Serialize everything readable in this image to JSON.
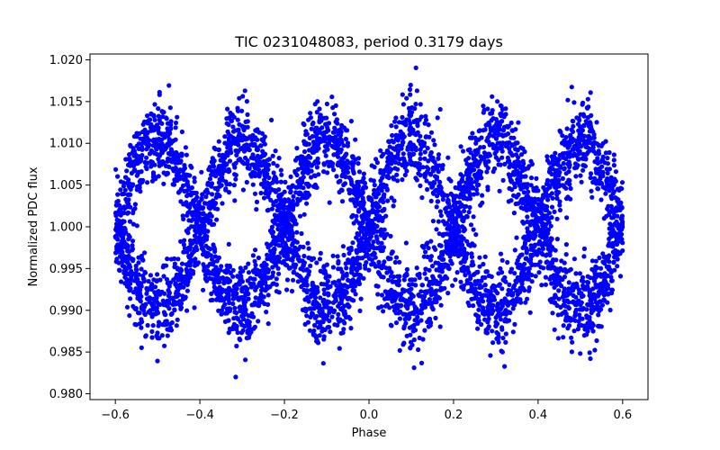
{
  "chart_data": {
    "type": "scatter",
    "title": "TIC 0231048083, period 0.3179 days",
    "xlabel": "Phase",
    "ylabel": "Normalized PDC flux",
    "xlim": [
      -0.66,
      0.66
    ],
    "ylim": [
      0.9793,
      1.0207
    ],
    "xticks": [
      -0.6,
      -0.4,
      -0.2,
      0.0,
      0.2,
      0.4,
      0.6
    ],
    "xtick_labels": [
      "−0.6",
      "−0.4",
      "−0.2",
      "0.0",
      "0.2",
      "0.4",
      "0.6"
    ],
    "yticks": [
      0.98,
      0.985,
      0.99,
      0.995,
      1.0,
      1.005,
      1.01,
      1.015,
      1.02
    ],
    "ytick_labels": [
      "0.980",
      "0.985",
      "0.990",
      "0.995",
      "1.000",
      "1.005",
      "1.010",
      "1.015",
      "1.020"
    ],
    "grid": false,
    "marker_color": "#0000ff",
    "series": [
      {
        "x": [
          -0.6,
          -0.58,
          -0.56,
          -0.54,
          -0.52,
          -0.5,
          -0.48,
          -0.46,
          -0.44,
          -0.42,
          -0.4,
          -0.38,
          -0.36,
          -0.34,
          -0.32,
          -0.3,
          -0.28,
          -0.26,
          -0.24,
          -0.22,
          -0.2,
          -0.18,
          -0.16,
          -0.14,
          -0.12,
          -0.1,
          -0.08,
          -0.06,
          -0.04,
          -0.02,
          0.0,
          0.02,
          0.04,
          0.06,
          0.08,
          0.1,
          0.12,
          0.14,
          0.16,
          0.18,
          0.2,
          0.22,
          0.24,
          0.26,
          0.28,
          0.3,
          0.32,
          0.34,
          0.36,
          0.38,
          0.4,
          0.42,
          0.44,
          0.46,
          0.48,
          0.5,
          0.52,
          0.54,
          0.56,
          0.58,
          0.6
        ],
        "y": [
          1.0,
          1.003,
          1.006,
          1.008,
          1.01,
          1.0105,
          1.01,
          1.008,
          1.006,
          1.003,
          1.0,
          0.997,
          0.994,
          0.992,
          0.9905,
          0.99,
          0.9905,
          0.992,
          0.994,
          0.997,
          1.0,
          1.003,
          1.006,
          1.008,
          1.01,
          1.0105,
          1.01,
          1.008,
          1.006,
          1.003,
          1.0,
          0.997,
          0.994,
          0.992,
          0.9905,
          0.99,
          0.9905,
          0.992,
          0.994,
          0.997,
          1.0,
          1.003,
          1.006,
          1.008,
          1.01,
          1.0105,
          1.01,
          1.008,
          1.006,
          1.003,
          1.0,
          0.997,
          0.994,
          0.992,
          0.9905,
          0.99,
          0.9905,
          0.992,
          0.994,
          0.997,
          1.0
        ]
      },
      {
        "x": [
          -0.6,
          -0.58,
          -0.56,
          -0.54,
          -0.52,
          -0.5,
          -0.48,
          -0.46,
          -0.44,
          -0.42,
          -0.4,
          -0.38,
          -0.36,
          -0.34,
          -0.32,
          -0.3,
          -0.28,
          -0.26,
          -0.24,
          -0.22,
          -0.2,
          -0.18,
          -0.16,
          -0.14,
          -0.12,
          -0.1,
          -0.08,
          -0.06,
          -0.04,
          -0.02,
          0.0,
          0.02,
          0.04,
          0.06,
          0.08,
          0.1,
          0.12,
          0.14,
          0.16,
          0.18,
          0.2,
          0.22,
          0.24,
          0.26,
          0.28,
          0.3,
          0.32,
          0.34,
          0.36,
          0.38,
          0.4,
          0.42,
          0.44,
          0.46,
          0.48,
          0.5,
          0.52,
          0.54,
          0.56,
          0.58,
          0.6
        ],
        "y": [
          1.0,
          0.997,
          0.994,
          0.992,
          0.9905,
          0.99,
          0.9905,
          0.992,
          0.994,
          0.997,
          1.0,
          1.003,
          1.006,
          1.008,
          1.01,
          1.0105,
          1.01,
          1.008,
          1.006,
          1.003,
          1.0,
          0.997,
          0.994,
          0.992,
          0.9905,
          0.99,
          0.9905,
          0.992,
          0.994,
          0.997,
          1.0,
          1.003,
          1.006,
          1.008,
          1.01,
          1.0105,
          1.01,
          1.008,
          1.006,
          1.003,
          1.0,
          0.997,
          0.994,
          0.992,
          0.9905,
          0.99,
          0.9905,
          0.992,
          0.994,
          0.997,
          1.0,
          1.003,
          1.006,
          1.008,
          1.01,
          1.0105,
          1.01,
          1.008,
          1.006,
          1.003,
          1.0
        ]
      }
    ],
    "scatter_spread": 0.0045
  }
}
